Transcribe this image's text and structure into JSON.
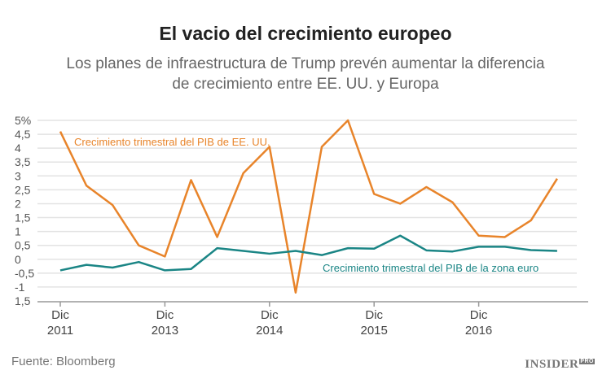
{
  "title": "El vacio del crecimiento europeo",
  "subtitle_line1": "Los planes de infraestructura de Trump prevén aumentar la diferencia",
  "subtitle_line2": "de crecimiento entre EE. UU. y Europa",
  "source": "Fuente: Bloomberg",
  "logo": "INSIDER PRO",
  "chart_data": {
    "type": "line",
    "title": "El vacio del crecimiento europeo",
    "ylim": [
      -1.5,
      5
    ],
    "grid": true,
    "y_ticks": [
      "5%",
      "4,5",
      "4",
      "3,5",
      "3",
      "2,5",
      "2",
      "1,5",
      "1",
      "0,5",
      "0",
      "-0,5",
      "-1",
      "1,5"
    ],
    "x_ticks": [
      {
        "index": 0,
        "line1": "Dic",
        "line2": "2011"
      },
      {
        "index": 4,
        "line1": "Dic",
        "line2": "2013"
      },
      {
        "index": 8,
        "line1": "Dic",
        "line2": "2014"
      },
      {
        "index": 12,
        "line1": "Dic",
        "line2": "2015"
      },
      {
        "index": 16,
        "line1": "Dic",
        "line2": "2016"
      }
    ],
    "series": [
      {
        "name": "Crecimiento trimestral del PIB de EE. UU.",
        "color": "#e8842a",
        "values": [
          4.6,
          2.65,
          1.95,
          0.5,
          0.1,
          2.85,
          0.8,
          3.1,
          4.05,
          -1.2,
          4.05,
          5.0,
          2.35,
          2.0,
          2.6,
          2.05,
          0.85,
          0.8,
          1.4,
          2.9
        ]
      },
      {
        "name": "Crecimiento trimestral del PIB de la zona euro",
        "color": "#1a8585",
        "values": [
          -0.4,
          -0.2,
          -0.3,
          -0.1,
          -0.4,
          -0.35,
          0.4,
          0.3,
          0.2,
          0.3,
          0.15,
          0.4,
          0.38,
          0.85,
          0.32,
          0.28,
          0.45,
          0.45,
          0.33,
          0.3
        ]
      }
    ]
  }
}
